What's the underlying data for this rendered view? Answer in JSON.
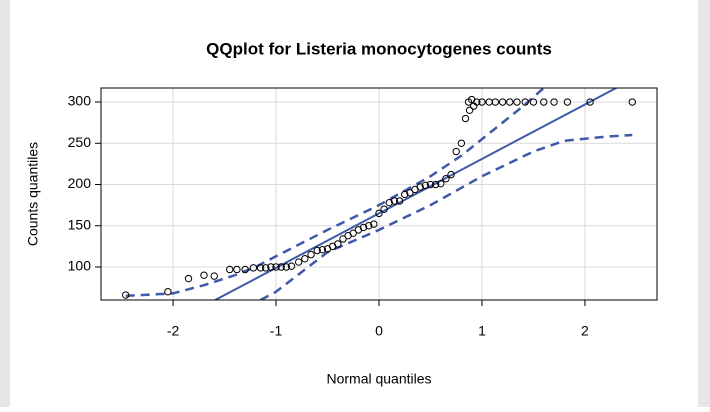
{
  "chart_data": {
    "type": "scatter",
    "title": "QQplot for Listeria monocytogenes counts",
    "xlabel": "Normal quantiles",
    "ylabel": "Counts quantiles",
    "xlim": [
      -2.7,
      2.7
    ],
    "ylim": [
      60,
      317
    ],
    "xticks": [
      -2,
      -1,
      0,
      1,
      2
    ],
    "yticks": [
      100,
      150,
      200,
      250,
      300
    ],
    "grid": true,
    "color": "#000000",
    "x": [
      -2.46,
      -2.05,
      -1.85,
      -1.7,
      -1.6,
      -1.45,
      -1.38,
      -1.3,
      -1.22,
      -1.15,
      -1.1,
      -1.05,
      -1.0,
      -0.95,
      -0.9,
      -0.85,
      -0.78,
      -0.72,
      -0.66,
      -0.6,
      -0.55,
      -0.5,
      -0.45,
      -0.4,
      -0.35,
      -0.3,
      -0.25,
      -0.2,
      -0.15,
      -0.1,
      -0.05,
      0.0,
      0.05,
      0.1,
      0.15,
      0.2,
      0.25,
      0.3,
      0.35,
      0.4,
      0.45,
      0.5,
      0.55,
      0.6,
      0.65,
      0.7,
      0.75,
      0.8,
      0.84,
      0.88,
      0.92,
      0.87,
      0.9,
      0.95,
      1.0,
      1.07,
      1.13,
      1.2,
      1.27,
      1.34,
      1.42,
      1.5,
      1.6,
      1.7,
      1.83,
      2.05,
      2.46
    ],
    "y": [
      66,
      70,
      86,
      90,
      89,
      97,
      97,
      97,
      99,
      99,
      99,
      100,
      100,
      100,
      100,
      101,
      106,
      110,
      115,
      120,
      121,
      122,
      125,
      128,
      134,
      138,
      141,
      145,
      148,
      150,
      152,
      165,
      170,
      178,
      180,
      180,
      188,
      190,
      194,
      197,
      199,
      200,
      200,
      201,
      207,
      212,
      240,
      250,
      280,
      290,
      295,
      300,
      303,
      300,
      300,
      300,
      300,
      300,
      300,
      300,
      300,
      300,
      300,
      300,
      300,
      300,
      300
    ],
    "reference_line": {
      "color": "#3f5aa8",
      "intercept": 165,
      "slope": 66
    },
    "envelope": {
      "color": "#3f5aa8",
      "upper": {
        "x": [
          -2.46,
          -2.0,
          -1.7,
          -1.4,
          -1.2,
          -1.0,
          -0.5,
          0.0,
          0.5,
          0.8,
          1.0,
          1.2,
          1.4,
          1.6
        ],
        "y": [
          65,
          68,
          78,
          90,
          100,
          113,
          145,
          175,
          210,
          235,
          255,
          275,
          295,
          317
        ]
      },
      "lower": {
        "x": [
          -1.15,
          -1.0,
          -0.5,
          0.0,
          0.5,
          1.0,
          1.5,
          1.8,
          2.2,
          2.46
        ],
        "y": [
          60,
          70,
          118,
          145,
          175,
          210,
          240,
          253,
          258,
          260
        ]
      }
    }
  }
}
